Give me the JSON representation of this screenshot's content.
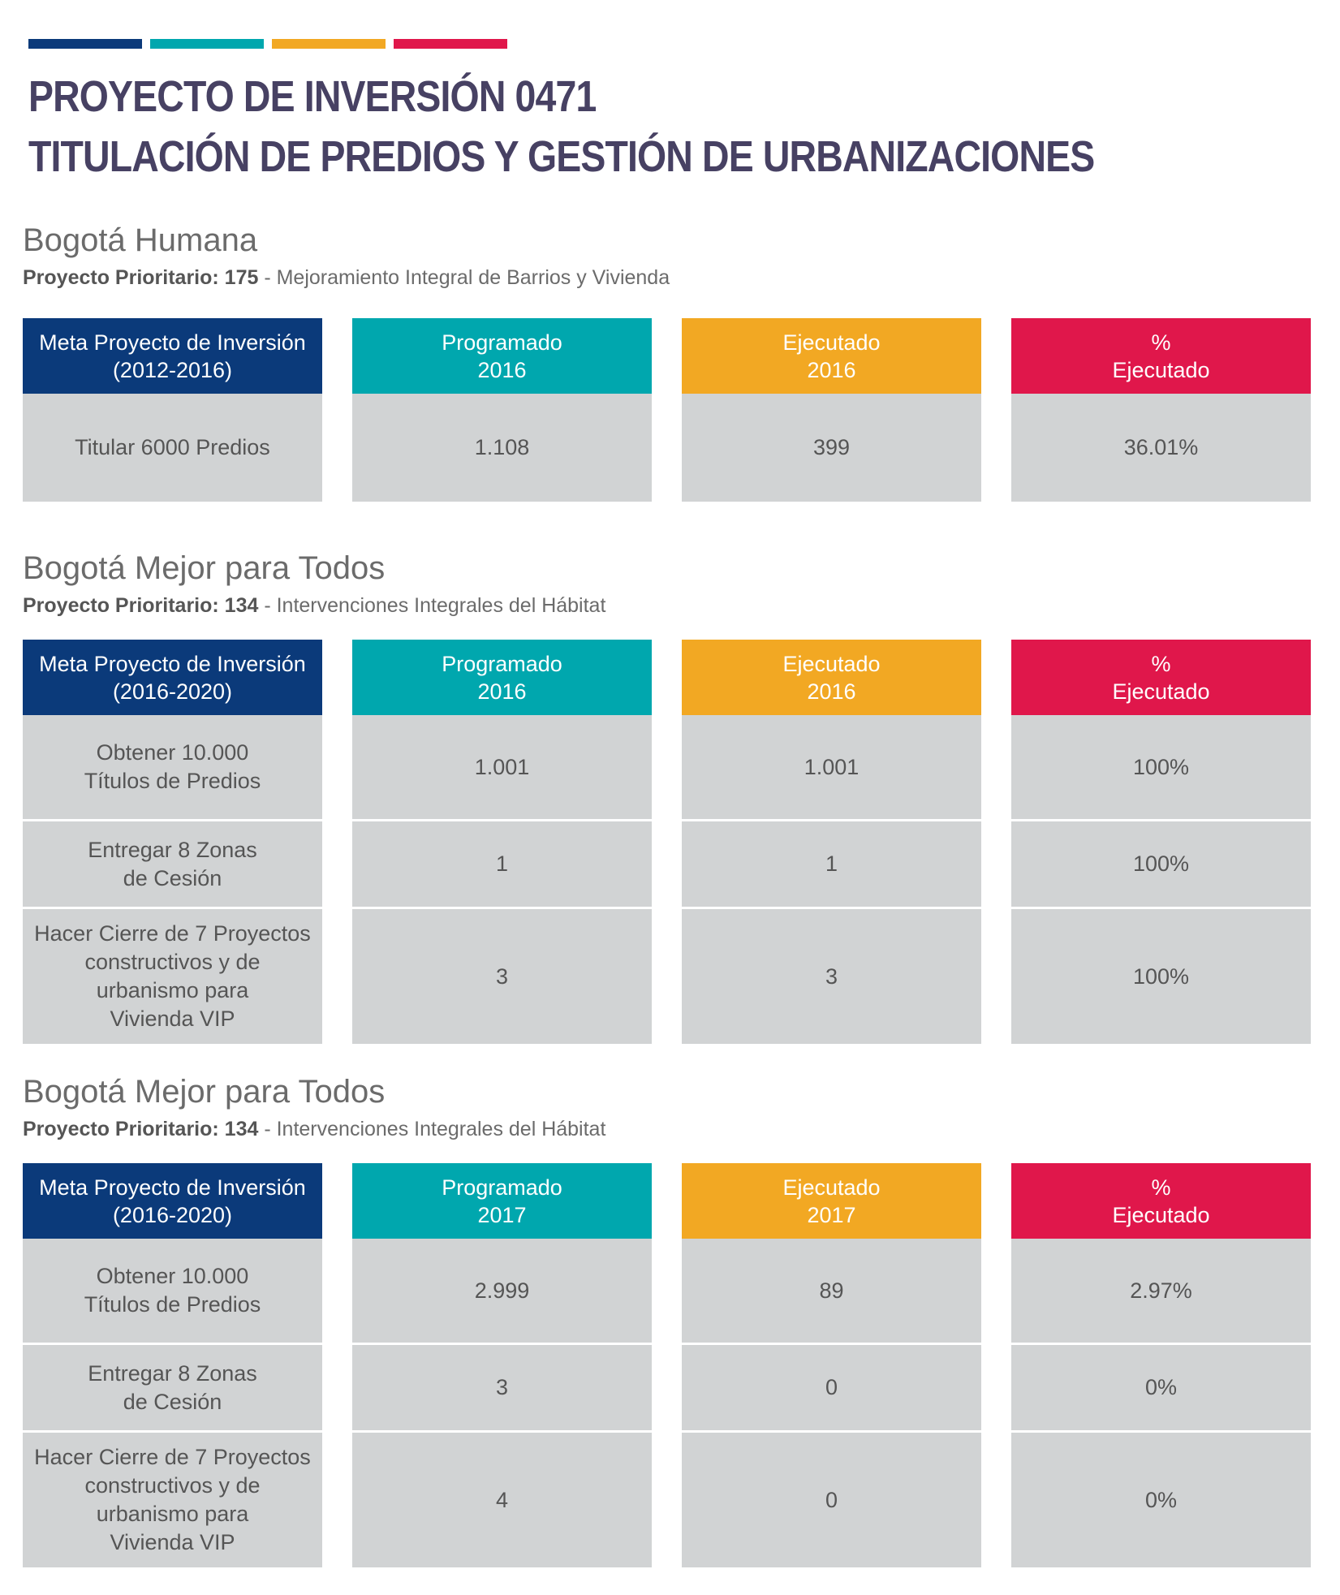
{
  "colors": {
    "navy": "#0b3a7a",
    "teal": "#00a7ae",
    "orange": "#f2a823",
    "crimson": "#e0174b",
    "title": "#474163",
    "cell": "#d1d3d4"
  },
  "header": {
    "title_line1": "PROYECTO DE INVERSIÓN 0471",
    "title_line2": "TITULACIÓN DE PREDIOS Y GESTIÓN DE URBANIZACIONES"
  },
  "sections": [
    {
      "title": "Bogotá Humana",
      "project_label": "Proyecto Prioritario: 175",
      "project_desc": " - Mejoramiento Integral de Barrios y Vivienda",
      "headers": [
        "Meta Proyecto de Inversión\n(2012-2016)",
        "Programado\n2016",
        "Ejecutado\n2016",
        "%\nEjecutado"
      ],
      "rows": [
        [
          "Titular 6000 Predios",
          "1.108",
          "399",
          "36.01%"
        ]
      ]
    },
    {
      "title": "Bogotá Mejor para Todos",
      "project_label": "Proyecto Prioritario: 134",
      "project_desc": " - Intervenciones Integrales del Hábitat",
      "headers": [
        "Meta Proyecto de Inversión\n(2016-2020)",
        "Programado\n2016",
        "Ejecutado\n2016",
        "%\nEjecutado"
      ],
      "rows": [
        [
          "Obtener 10.000\nTítulos de Predios",
          "1.001",
          "1.001",
          "100%"
        ],
        [
          "Entregar 8 Zonas\nde Cesión",
          "1",
          "1",
          "100%"
        ],
        [
          "Hacer Cierre de 7 Proyectos\nconstructivos  y de\nurbanismo para\nVivienda VIP",
          "3",
          "3",
          "100%"
        ]
      ]
    },
    {
      "title": "Bogotá Mejor para Todos",
      "project_label": "Proyecto Prioritario: 134",
      "project_desc": " - Intervenciones Integrales del Hábitat",
      "headers": [
        "Meta Proyecto de Inversión\n(2016-2020)",
        "Programado\n2017",
        "Ejecutado\n2017",
        "%\nEjecutado"
      ],
      "rows": [
        [
          "Obtener 10.000\nTítulos de Predios",
          "2.999",
          "89",
          "2.97%"
        ],
        [
          "Entregar 8 Zonas\nde Cesión",
          "3",
          "0",
          "0%"
        ],
        [
          "Hacer Cierre de 7 Proyectos\nconstructivos  y de\nurbanismo para\nVivienda VIP",
          "4",
          "0",
          "0%"
        ]
      ]
    }
  ]
}
